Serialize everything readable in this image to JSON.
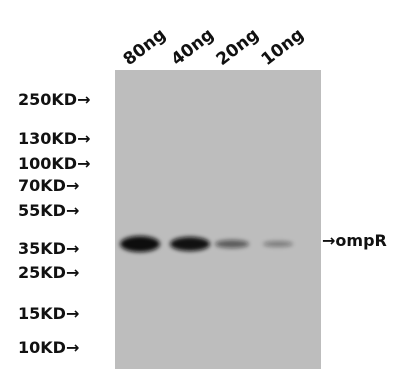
{
  "lanes": [
    {
      "label": "80ng",
      "band_intensity": 1.0
    },
    {
      "label": "40ng",
      "band_intensity": 0.85
    },
    {
      "label": "20ng",
      "band_intensity": 0.35
    },
    {
      "label": "10ng",
      "band_intensity": 0.15
    }
  ],
  "markers": [
    {
      "label": "250KD",
      "arrow": "→"
    },
    {
      "label": "130KD",
      "arrow": "→"
    },
    {
      "label": "100KD",
      "arrow": "→"
    },
    {
      "label": "70KD",
      "arrow": "→"
    },
    {
      "label": "55KD",
      "arrow": "→"
    },
    {
      "label": "35KD",
      "arrow": "→"
    },
    {
      "label": "25KD",
      "arrow": "→"
    },
    {
      "label": "15KD",
      "arrow": "→"
    },
    {
      "label": "10KD",
      "arrow": "→"
    }
  ],
  "target": {
    "arrow": "→",
    "label": "ompR"
  },
  "colors": {
    "membrane": "#bdbdbd",
    "band": "#0a0a0a"
  }
}
